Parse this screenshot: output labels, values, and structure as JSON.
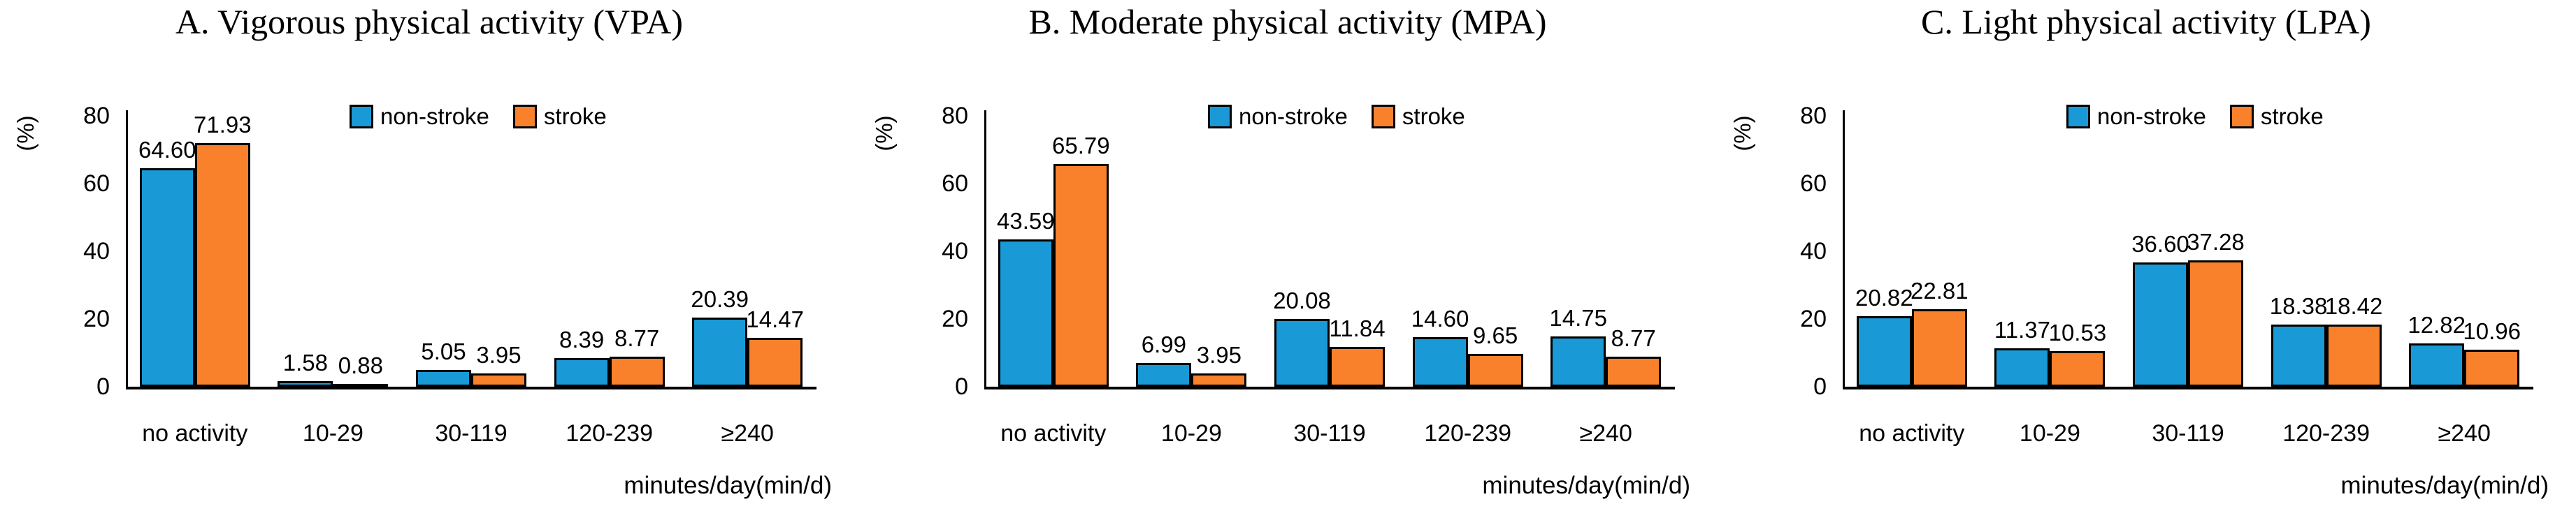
{
  "figure": {
    "y_axis_unit_label": "(%)",
    "x_axis_title": "minutes/day(min/d)",
    "y_ticks": [
      0,
      20,
      40,
      60,
      80
    ],
    "legend": [
      {
        "label": "non-stroke",
        "color": "#199AD6"
      },
      {
        "label": "stroke",
        "color": "#F9812C"
      }
    ],
    "bar_border_color": "#000000",
    "background_color": "#FFFFFF",
    "text_color": "#000000"
  },
  "chart_data": [
    {
      "type": "bar",
      "title": "A. Vigorous physical activity (VPA)",
      "categories": [
        "no activity",
        "10-29",
        "30-119",
        "120-239",
        "≥240"
      ],
      "series": [
        {
          "name": "non-stroke",
          "values": [
            64.6,
            1.58,
            5.05,
            8.39,
            20.39
          ]
        },
        {
          "name": "stroke",
          "values": [
            71.93,
            0.88,
            3.95,
            8.77,
            14.47
          ]
        }
      ],
      "xlabel": "minutes/day(min/d)",
      "ylabel": "(%)",
      "ylim": [
        0,
        80
      ],
      "grid": false,
      "legend_position": "top-center",
      "value_label_decimals": 2
    },
    {
      "type": "bar",
      "title": "B. Moderate physical activity (MPA)",
      "categories": [
        "no activity",
        "10-29",
        "30-119",
        "120-239",
        "≥240"
      ],
      "series": [
        {
          "name": "non-stroke",
          "values": [
            43.59,
            6.99,
            20.08,
            14.6,
            14.75
          ]
        },
        {
          "name": "stroke",
          "values": [
            65.79,
            3.95,
            11.84,
            9.65,
            8.77
          ]
        }
      ],
      "xlabel": "minutes/day(min/d)",
      "ylabel": "(%)",
      "ylim": [
        0,
        80
      ],
      "grid": false,
      "legend_position": "top-center",
      "value_label_decimals": 2
    },
    {
      "type": "bar",
      "title": "C. Light physical activity (LPA)",
      "categories": [
        "no activity",
        "10-29",
        "30-119",
        "120-239",
        "≥240"
      ],
      "series": [
        {
          "name": "non-stroke",
          "values": [
            20.82,
            11.37,
            36.6,
            18.38,
            12.82
          ]
        },
        {
          "name": "stroke",
          "values": [
            22.81,
            10.53,
            37.28,
            18.42,
            10.96
          ]
        }
      ],
      "xlabel": "minutes/day(min/d)",
      "ylabel": "(%)",
      "ylim": [
        0,
        80
      ],
      "grid": false,
      "legend_position": "top-center",
      "value_label_decimals": 2
    }
  ]
}
